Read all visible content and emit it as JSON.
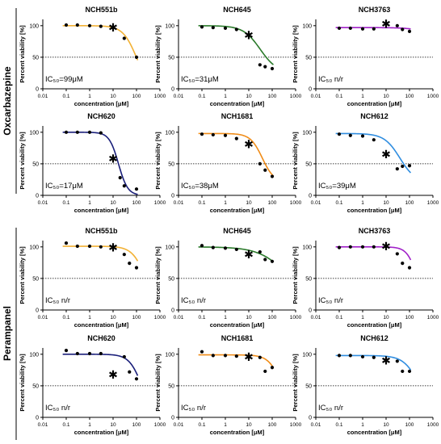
{
  "figure": {
    "groups": [
      {
        "label": "Oxcarbazepine"
      },
      {
        "label": "Perampanel"
      }
    ]
  },
  "axes": {
    "xlabel": "concentration [μM]",
    "ylabel": "Percent viability [%]",
    "xticks": [
      "0.01",
      "0.1",
      "1",
      "10",
      "100",
      "1000"
    ],
    "yticks": [
      "0",
      "50",
      "100"
    ]
  },
  "chart_data": [
    {
      "type": "scatter",
      "title": "NCH551b",
      "ic50": "IC₅₀=99μM",
      "color": "#f2b134",
      "group": "Oxcarbazepine",
      "x_log": true,
      "xlim": [
        0.01,
        1000
      ],
      "ylim": [
        0,
        110
      ],
      "reference_line": 50,
      "points": [
        [
          0.1,
          101
        ],
        [
          0.3,
          101
        ],
        [
          1,
          100
        ],
        [
          3,
          99
        ],
        [
          30,
          80
        ],
        [
          100,
          50
        ]
      ],
      "star": [
        10,
        97
      ],
      "curve": {
        "top": 100,
        "bottom": 0,
        "ic50": 99,
        "hill": 1.5
      }
    },
    {
      "type": "scatter",
      "title": "NCH645",
      "ic50": "IC₅₀=31μM",
      "color": "#2a7a2a",
      "group": "Oxcarbazepine",
      "x_log": true,
      "xlim": [
        0.01,
        1000
      ],
      "ylim": [
        0,
        110
      ],
      "reference_line": 50,
      "points": [
        [
          0.1,
          98
        ],
        [
          0.3,
          97
        ],
        [
          1,
          96
        ],
        [
          3,
          94
        ],
        [
          30,
          38
        ],
        [
          50,
          35
        ],
        [
          100,
          32
        ]
      ],
      "star": [
        10,
        85
      ],
      "curve": {
        "top": 100,
        "bottom": 25,
        "ic50": 31,
        "hill": 1.2
      }
    },
    {
      "type": "scatter",
      "title": "NCH3763",
      "ic50": "IC₅₀ n/r",
      "color": "#a020c8",
      "group": "Oxcarbazepine",
      "x_log": true,
      "xlim": [
        0.01,
        1000
      ],
      "ylim": [
        0,
        110
      ],
      "reference_line": 50,
      "points": [
        [
          0.1,
          96
        ],
        [
          0.3,
          96
        ],
        [
          1,
          95
        ],
        [
          3,
          95
        ],
        [
          30,
          100
        ],
        [
          50,
          94
        ],
        [
          100,
          91
        ]
      ],
      "star": [
        10,
        103
      ],
      "curve": {
        "top": 97,
        "bottom": 0,
        "ic50": 5000,
        "hill": 1
      }
    },
    {
      "type": "scatter",
      "title": "NCH620",
      "ic50": "IC₅₀=17μM",
      "color": "#1a1f7a",
      "group": "Oxcarbazepine",
      "x_log": true,
      "xlim": [
        0.01,
        1000
      ],
      "ylim": [
        0,
        110
      ],
      "reference_line": 50,
      "points": [
        [
          0.1,
          100
        ],
        [
          0.3,
          100
        ],
        [
          1,
          100
        ],
        [
          3,
          99
        ],
        [
          20,
          28
        ],
        [
          30,
          15
        ],
        [
          100,
          10
        ]
      ],
      "star": [
        10,
        58
      ],
      "curve": {
        "top": 100,
        "bottom": 0,
        "ic50": 17,
        "hill": 2.2
      }
    },
    {
      "type": "scatter",
      "title": "NCH1681",
      "ic50": "IC₅₀=38μM",
      "color": "#f08c18",
      "group": "Oxcarbazepine",
      "x_log": true,
      "xlim": [
        0.01,
        1000
      ],
      "ylim": [
        0,
        110
      ],
      "reference_line": 50,
      "points": [
        [
          0.1,
          97
        ],
        [
          0.3,
          96
        ],
        [
          1,
          95
        ],
        [
          3,
          90
        ],
        [
          30,
          50
        ],
        [
          50,
          40
        ],
        [
          100,
          30
        ]
      ],
      "star": [
        10,
        81
      ],
      "curve": {
        "top": 98,
        "bottom": 20,
        "ic50": 38,
        "hill": 1.7
      }
    },
    {
      "type": "scatter",
      "title": "NCH612",
      "ic50": "IC₅₀=39μM",
      "color": "#2f8de0",
      "group": "Oxcarbazepine",
      "x_log": true,
      "xlim": [
        0.01,
        1000
      ],
      "ylim": [
        0,
        110
      ],
      "reference_line": 50,
      "points": [
        [
          0.1,
          97
        ],
        [
          0.3,
          95
        ],
        [
          1,
          94
        ],
        [
          3,
          88
        ],
        [
          30,
          42
        ],
        [
          50,
          46
        ],
        [
          100,
          47
        ]
      ],
      "star": [
        10,
        65
      ],
      "curve": {
        "top": 98,
        "bottom": 20,
        "ic50": 39,
        "hill": 1.3
      }
    },
    {
      "type": "scatter",
      "title": "NCH551b",
      "ic50": "IC₅₀ n/r",
      "color": "#f2b134",
      "group": "Perampanel",
      "x_log": true,
      "xlim": [
        0.01,
        1000
      ],
      "ylim": [
        0,
        110
      ],
      "reference_line": 50,
      "points": [
        [
          0.1,
          106
        ],
        [
          0.3,
          101
        ],
        [
          1,
          101
        ],
        [
          3,
          100
        ],
        [
          30,
          88
        ],
        [
          50,
          74
        ],
        [
          100,
          67
        ]
      ],
      "star": [
        10,
        99
      ],
      "curve": {
        "top": 101,
        "bottom": 0,
        "ic50": 250,
        "hill": 1.5
      }
    },
    {
      "type": "scatter",
      "title": "NCH645",
      "ic50": "IC₅₀ n/r",
      "color": "#2a7a2a",
      "group": "Perampanel",
      "x_log": true,
      "xlim": [
        0.01,
        1000
      ],
      "ylim": [
        0,
        110
      ],
      "reference_line": 50,
      "points": [
        [
          0.1,
          102
        ],
        [
          0.3,
          99
        ],
        [
          1,
          98
        ],
        [
          3,
          96
        ],
        [
          30,
          92
        ],
        [
          50,
          80
        ],
        [
          100,
          77
        ]
      ],
      "star": [
        10,
        88
      ],
      "curve": {
        "top": 100,
        "bottom": 0,
        "ic50": 600,
        "hill": 0.7
      }
    },
    {
      "type": "scatter",
      "title": "NCH3763",
      "ic50": "IC₅₀ n/r",
      "color": "#a020c8",
      "group": "Perampanel",
      "x_log": true,
      "xlim": [
        0.01,
        1000
      ],
      "ylim": [
        0,
        110
      ],
      "reference_line": 50,
      "points": [
        [
          0.1,
          99
        ],
        [
          0.3,
          100
        ],
        [
          1,
          100
        ],
        [
          3,
          100
        ],
        [
          30,
          89
        ],
        [
          50,
          74
        ],
        [
          100,
          67
        ]
      ],
      "star": [
        10,
        101
      ],
      "curve": {
        "top": 100,
        "bottom": 0,
        "ic50": 220,
        "hill": 2
      }
    },
    {
      "type": "scatter",
      "title": "NCH620",
      "ic50": "IC₅₀ n/r",
      "color": "#1a1f7a",
      "group": "Perampanel",
      "x_log": true,
      "xlim": [
        0.01,
        1000
      ],
      "ylim": [
        0,
        110
      ],
      "reference_line": 50,
      "points": [
        [
          0.1,
          106
        ],
        [
          0.3,
          101
        ],
        [
          1,
          101
        ],
        [
          3,
          101
        ],
        [
          30,
          96
        ],
        [
          50,
          72
        ],
        [
          100,
          61
        ]
      ],
      "star": [
        10,
        68
      ],
      "curve": {
        "top": 100,
        "bottom": 0,
        "ic50": 170,
        "hill": 1.6
      }
    },
    {
      "type": "scatter",
      "title": "NCH1681",
      "ic50": "IC₅₀ n/r",
      "color": "#f08c18",
      "group": "Perampanel",
      "x_log": true,
      "xlim": [
        0.01,
        1000
      ],
      "ylim": [
        0,
        110
      ],
      "reference_line": 50,
      "points": [
        [
          0.1,
          104
        ],
        [
          0.3,
          98
        ],
        [
          1,
          98
        ],
        [
          3,
          97
        ],
        [
          30,
          95
        ],
        [
          50,
          73
        ],
        [
          100,
          79
        ]
      ],
      "star": [
        10,
        96
      ],
      "curve": {
        "top": 99,
        "bottom": 0,
        "ic50": 260,
        "hill": 1.6
      }
    },
    {
      "type": "scatter",
      "title": "NCH612",
      "ic50": "IC₅₀ n/r",
      "color": "#2f8de0",
      "group": "Perampanel",
      "x_log": true,
      "xlim": [
        0.01,
        1000
      ],
      "ylim": [
        0,
        110
      ],
      "reference_line": 50,
      "points": [
        [
          0.1,
          98
        ],
        [
          0.3,
          98
        ],
        [
          1,
          96
        ],
        [
          3,
          95
        ],
        [
          30,
          89
        ],
        [
          50,
          73
        ],
        [
          100,
          73
        ]
      ],
      "star": [
        10,
        90
      ],
      "curve": {
        "top": 98,
        "bottom": 0,
        "ic50": 280,
        "hill": 1.3
      }
    }
  ]
}
